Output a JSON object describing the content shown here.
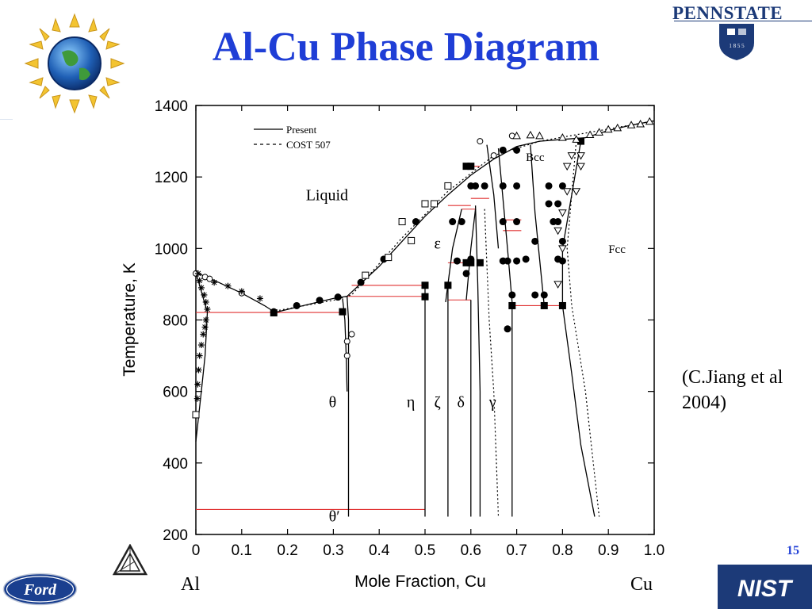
{
  "slide": {
    "title": "Al-Cu Phase Diagram",
    "citation_line1": "(C.Jiang et al",
    "citation_line2": "2004)",
    "page_number": "15",
    "endpoint_left": "Al",
    "endpoint_right": "Cu",
    "institution": "PENNSTATE",
    "institution_seal": "1 8 5 5",
    "logos": [
      "globe-star-logo",
      "pennstate-logo",
      "ford-logo",
      "nist-logo",
      "triangle-logo"
    ],
    "colors": {
      "title": "#1f3ed6",
      "tie_lines": "#e03030",
      "pennstate": "#1c3a78",
      "nist": "#1c3a78",
      "ford": "#1a3f8f"
    }
  },
  "chart_data": {
    "type": "scatter",
    "subtype": "phase diagram",
    "xlabel": "Mole Fraction, Cu",
    "ylabel": "Temperature, K",
    "xlim": [
      0,
      1.0
    ],
    "ylim": [
      200,
      1400
    ],
    "xticks": [
      0,
      0.1,
      0.2,
      0.3,
      0.4,
      0.5,
      0.6,
      0.7,
      0.8,
      0.9,
      1.0
    ],
    "xtick_labels": [
      "0",
      "0.1",
      "0.2",
      "0.3",
      "0.4",
      "0.5",
      "0.6",
      "0.7",
      "0.8",
      "0.9",
      "1.0"
    ],
    "yticks": [
      200,
      400,
      600,
      800,
      1000,
      1200,
      1400
    ],
    "ytick_labels": [
      "200",
      "400",
      "600",
      "800",
      "1000",
      "1200",
      "1400"
    ],
    "legend": {
      "placement": "top-left",
      "entries": [
        "Present",
        "COST 507"
      ]
    },
    "phase_labels": [
      {
        "text": "Liquid",
        "x": 0.24,
        "y": 1135
      },
      {
        "text": "Bcc",
        "x": 0.72,
        "y": 1245
      },
      {
        "text": "Fcc",
        "x": 0.9,
        "y": 987
      },
      {
        "text": "ε",
        "x": 0.52,
        "y": 1000
      },
      {
        "text": "θ",
        "x": 0.29,
        "y": 556
      },
      {
        "text": "η",
        "x": 0.46,
        "y": 556
      },
      {
        "text": "ζ",
        "x": 0.52,
        "y": 556
      },
      {
        "text": "δ",
        "x": 0.57,
        "y": 556
      },
      {
        "text": "γ",
        "x": 0.64,
        "y": 556
      },
      {
        "text": "θ′",
        "x": 0.29,
        "y": 237
      }
    ],
    "series": [
      {
        "name": "Present",
        "style": "solid",
        "curves": [
          {
            "label": "liquidus-al-side",
            "x": [
              0.0,
              0.05,
              0.1,
              0.15,
              0.173
            ],
            "y": [
              933,
              905,
              875,
              840,
              821
            ]
          },
          {
            "label": "liquidus-eutectic-to-peak",
            "x": [
              0.173,
              0.25,
              0.3,
              0.33,
              0.4,
              0.45,
              0.5,
              0.55,
              0.6,
              0.65,
              0.7,
              0.75,
              0.8,
              0.85,
              0.9,
              0.95,
              1.0
            ],
            "y": [
              821,
              845,
              860,
              866,
              950,
              1020,
              1090,
              1150,
              1205,
              1250,
              1285,
              1300,
              1305,
              1310,
              1330,
              1345,
              1357
            ]
          },
          {
            "label": "al-solvus",
            "x": [
              0.0,
              0.025,
              0.02,
              0.012,
              0.0
            ],
            "y": [
              933,
              821,
              700,
              600,
              460
            ]
          },
          {
            "label": "theta-left",
            "x": [
              0.32,
              0.325,
              0.328,
              0.33
            ],
            "y": [
              860,
              800,
              700,
              600
            ]
          },
          {
            "label": "theta-right",
            "x": [
              0.33,
              0.333,
              0.333
            ],
            "y": [
              866,
              800,
              250
            ]
          },
          {
            "label": "eta",
            "x": [
              0.5,
              0.5
            ],
            "y": [
              897,
              250
            ]
          },
          {
            "label": "zeta",
            "x": [
              0.55,
              0.55
            ],
            "y": [
              897,
              250
            ]
          },
          {
            "label": "epsilon-left",
            "x": [
              0.545,
              0.56,
              0.58
            ],
            "y": [
              850,
              1000,
              1110
            ]
          },
          {
            "label": "epsilon-right",
            "x": [
              0.59,
              0.6,
              0.61
            ],
            "y": [
              856,
              1000,
              1110
            ]
          },
          {
            "label": "delta",
            "x": [
              0.6,
              0.6
            ],
            "y": [
              856,
              250
            ]
          },
          {
            "label": "gamma-left",
            "x": [
              0.61,
              0.615,
              0.62,
              0.62
            ],
            "y": [
              1120,
              900,
              600,
              250
            ]
          },
          {
            "label": "gamma-right",
            "x": [
              0.66,
              0.68,
              0.69,
              0.69
            ],
            "y": [
              1280,
              1000,
              850,
              250
            ]
          },
          {
            "label": "bcc-left",
            "x": [
              0.635,
              0.65,
              0.66
            ],
            "y": [
              1290,
              1150,
              1000
            ]
          },
          {
            "label": "bcc-right",
            "x": [
              0.73,
              0.74,
              0.76
            ],
            "y": [
              1290,
              1100,
              840
            ]
          },
          {
            "label": "fcc-boundary",
            "x": [
              0.84,
              0.82,
              0.8,
              0.8,
              0.82,
              0.84,
              0.87
            ],
            "y": [
              1300,
              1150,
              1000,
              840,
              650,
              450,
              250
            ]
          }
        ]
      },
      {
        "name": "COST 507",
        "style": "dashed",
        "curves": [
          {
            "label": "liquidus-cost",
            "x": [
              0.173,
              0.3,
              0.34,
              0.45,
              0.55,
              0.65,
              0.75,
              1.0
            ],
            "y": [
              825,
              855,
              870,
              1030,
              1160,
              1260,
              1300,
              1357
            ]
          },
          {
            "label": "gamma-cost",
            "x": [
              0.63,
              0.64,
              0.65,
              0.66
            ],
            "y": [
              1110,
              800,
              600,
              250
            ]
          },
          {
            "label": "fcc-cost",
            "x": [
              0.83,
              0.81,
              0.82,
              0.85,
              0.88
            ],
            "y": [
              1300,
              1000,
              840,
              600,
              250
            ]
          }
        ]
      },
      {
        "name": "tie-lines",
        "style": "red",
        "segments": [
          {
            "x": [
              0.0,
              0.32
            ],
            "y": [
              821,
              821
            ]
          },
          {
            "x": [
              0.33,
              0.5
            ],
            "y": [
              866,
              866
            ]
          },
          {
            "x": [
              0.34,
              0.5
            ],
            "y": [
              897,
              897
            ]
          },
          {
            "x": [
              0.55,
              0.6
            ],
            "y": [
              856,
              856
            ]
          },
          {
            "x": [
              0.55,
              0.6
            ],
            "y": [
              960,
              960
            ]
          },
          {
            "x": [
              0.58,
              0.61
            ],
            "y": [
              1110,
              1110
            ]
          },
          {
            "x": [
              0.55,
              0.6
            ],
            "y": [
              1120,
              1120
            ]
          },
          {
            "x": [
              0.59,
              0.62
            ],
            "y": [
              1230,
              1230
            ]
          },
          {
            "x": [
              0.6,
              0.64
            ],
            "y": [
              1140,
              1140
            ]
          },
          {
            "x": [
              0.67,
              0.71
            ],
            "y": [
              1080,
              1080
            ]
          },
          {
            "x": [
              0.67,
              0.71
            ],
            "y": [
              1050,
              1050
            ]
          },
          {
            "x": [
              0.69,
              0.8
            ],
            "y": [
              840,
              840
            ]
          },
          {
            "x": [
              0.0,
              0.5
            ],
            "y": [
              270,
              270
            ]
          }
        ]
      },
      {
        "name": "filled-circles",
        "marker": "circle",
        "x": [
          0.17,
          0.22,
          0.27,
          0.31,
          0.36,
          0.41,
          0.48,
          0.56,
          0.58,
          0.6,
          0.61,
          0.6,
          0.57,
          0.59,
          0.63,
          0.67,
          0.67,
          0.67,
          0.67,
          0.7,
          0.7,
          0.7,
          0.7,
          0.72,
          0.74,
          0.77,
          0.78,
          0.79,
          0.8,
          0.79,
          0.8,
          0.76,
          0.69,
          0.74,
          0.8,
          0.77,
          0.79,
          0.68,
          0.68
        ],
        "y": [
          823,
          840,
          855,
          864,
          905,
          970,
          1075,
          1075,
          1075,
          1175,
          1175,
          970,
          965,
          930,
          1175,
          1275,
          1175,
          1075,
          965,
          1275,
          1175,
          1075,
          965,
          970,
          870,
          1175,
          1075,
          970,
          1175,
          1075,
          965,
          870,
          870,
          1020,
          1020,
          1125,
          1125,
          775,
          965
        ]
      },
      {
        "name": "filled-squares",
        "marker": "square",
        "x": [
          0.17,
          0.32,
          0.5,
          0.5,
          0.55,
          0.59,
          0.59,
          0.6,
          0.6,
          0.62,
          0.69,
          0.76,
          0.8,
          0.84
        ],
        "y": [
          820,
          823,
          865,
          897,
          897,
          1230,
          960,
          1230,
          960,
          960,
          840,
          840,
          840,
          1300
        ]
      },
      {
        "name": "open-squares",
        "marker": "square-open",
        "x": [
          0.5,
          0.52,
          0.55,
          0.47,
          0.42,
          0.37,
          0.45,
          0.0
        ],
        "y": [
          1125,
          1125,
          1175,
          1022,
          975,
          925,
          1075,
          535
        ]
      },
      {
        "name": "open-circles",
        "marker": "circle-open",
        "x": [
          0.0,
          0.02,
          0.03,
          0.1,
          0.65,
          0.62,
          0.69,
          0.33,
          0.34,
          0.33
        ],
        "y": [
          930,
          920,
          915,
          875,
          1260,
          1300,
          1315,
          740,
          760,
          700
        ]
      },
      {
        "name": "open-triangles",
        "marker": "triangle-open",
        "x": [
          0.7,
          0.73,
          0.75,
          0.8,
          0.83,
          0.86,
          0.88,
          0.9,
          0.92,
          0.95,
          0.97,
          0.99
        ],
        "y": [
          1315,
          1317,
          1315,
          1310,
          1305,
          1318,
          1325,
          1333,
          1337,
          1345,
          1348,
          1355
        ]
      },
      {
        "name": "down-triangles",
        "marker": "triangle-down",
        "x": [
          0.82,
          0.81,
          0.81,
          0.8,
          0.8,
          0.79,
          0.79,
          0.84,
          0.84,
          0.83
        ],
        "y": [
          1260,
          1230,
          1160,
          1100,
          1000,
          1050,
          900,
          1260,
          1230,
          1160
        ]
      },
      {
        "name": "al-side-markers",
        "marker": "star",
        "x": [
          0.005,
          0.008,
          0.012,
          0.018,
          0.022,
          0.025,
          0.022,
          0.02,
          0.016,
          0.012,
          0.008,
          0.006,
          0.004,
          0.003,
          0.04,
          0.07,
          0.1,
          0.14
        ],
        "y": [
          930,
          910,
          890,
          870,
          850,
          830,
          800,
          780,
          760,
          730,
          700,
          660,
          620,
          580,
          905,
          895,
          880,
          860
        ]
      }
    ]
  }
}
